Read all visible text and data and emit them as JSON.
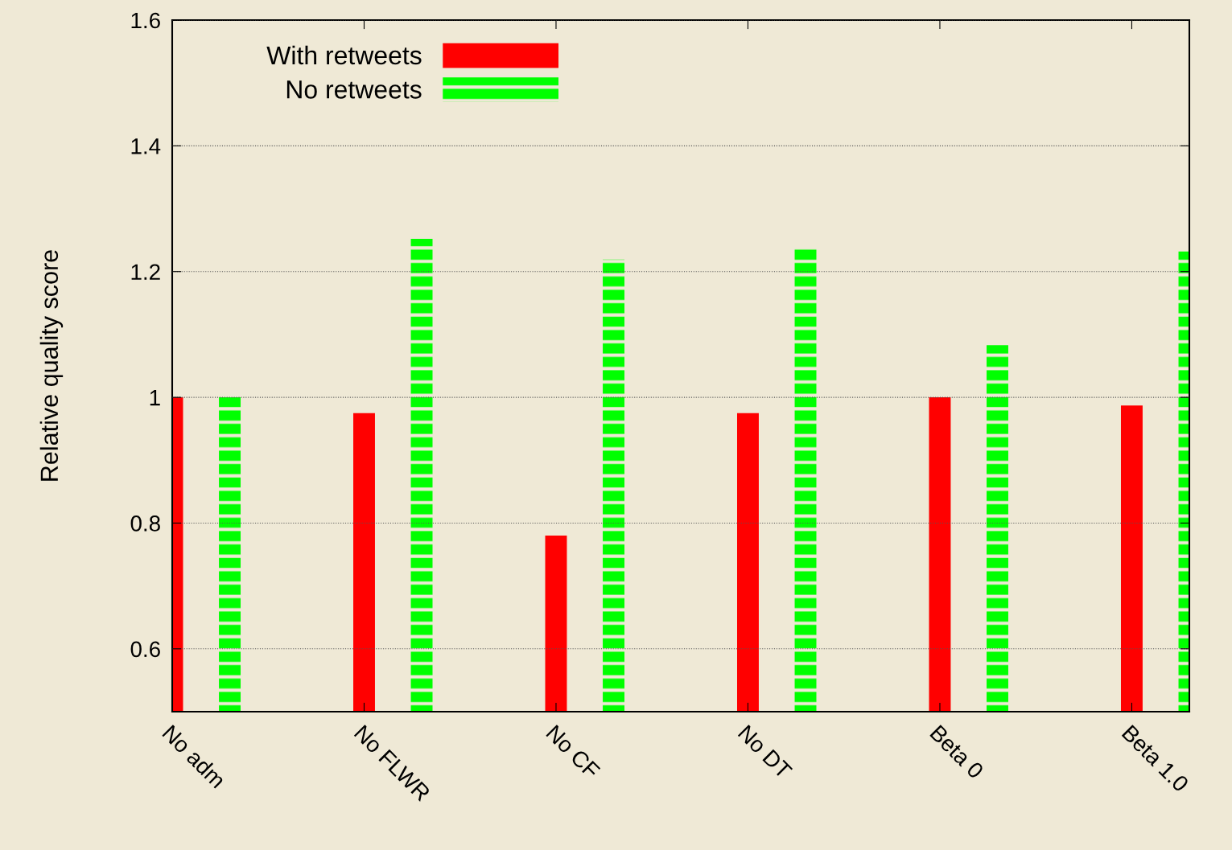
{
  "chart_data": {
    "type": "bar",
    "ylabel": "Relative quality score",
    "categories": [
      "No adm",
      "No FLWR",
      "No CF",
      "No DT",
      "Beta 0",
      "Beta 1.0"
    ],
    "series": [
      {
        "name": "With retweets",
        "color": "#ff0000",
        "values": [
          1.0,
          0.975,
          0.78,
          0.975,
          1.0,
          0.987
        ]
      },
      {
        "name": "No retweets",
        "color": "#00ff00",
        "values": [
          1.0,
          1.252,
          1.219,
          1.239,
          1.083,
          1.232
        ]
      }
    ],
    "ylim": [
      0.5,
      1.6
    ],
    "yticks": [
      0.6,
      0.8,
      {
        "value": 1.0,
        "label": "1"
      },
      1.2,
      1.4,
      1.6
    ],
    "grid": "y",
    "legend": "top left"
  }
}
